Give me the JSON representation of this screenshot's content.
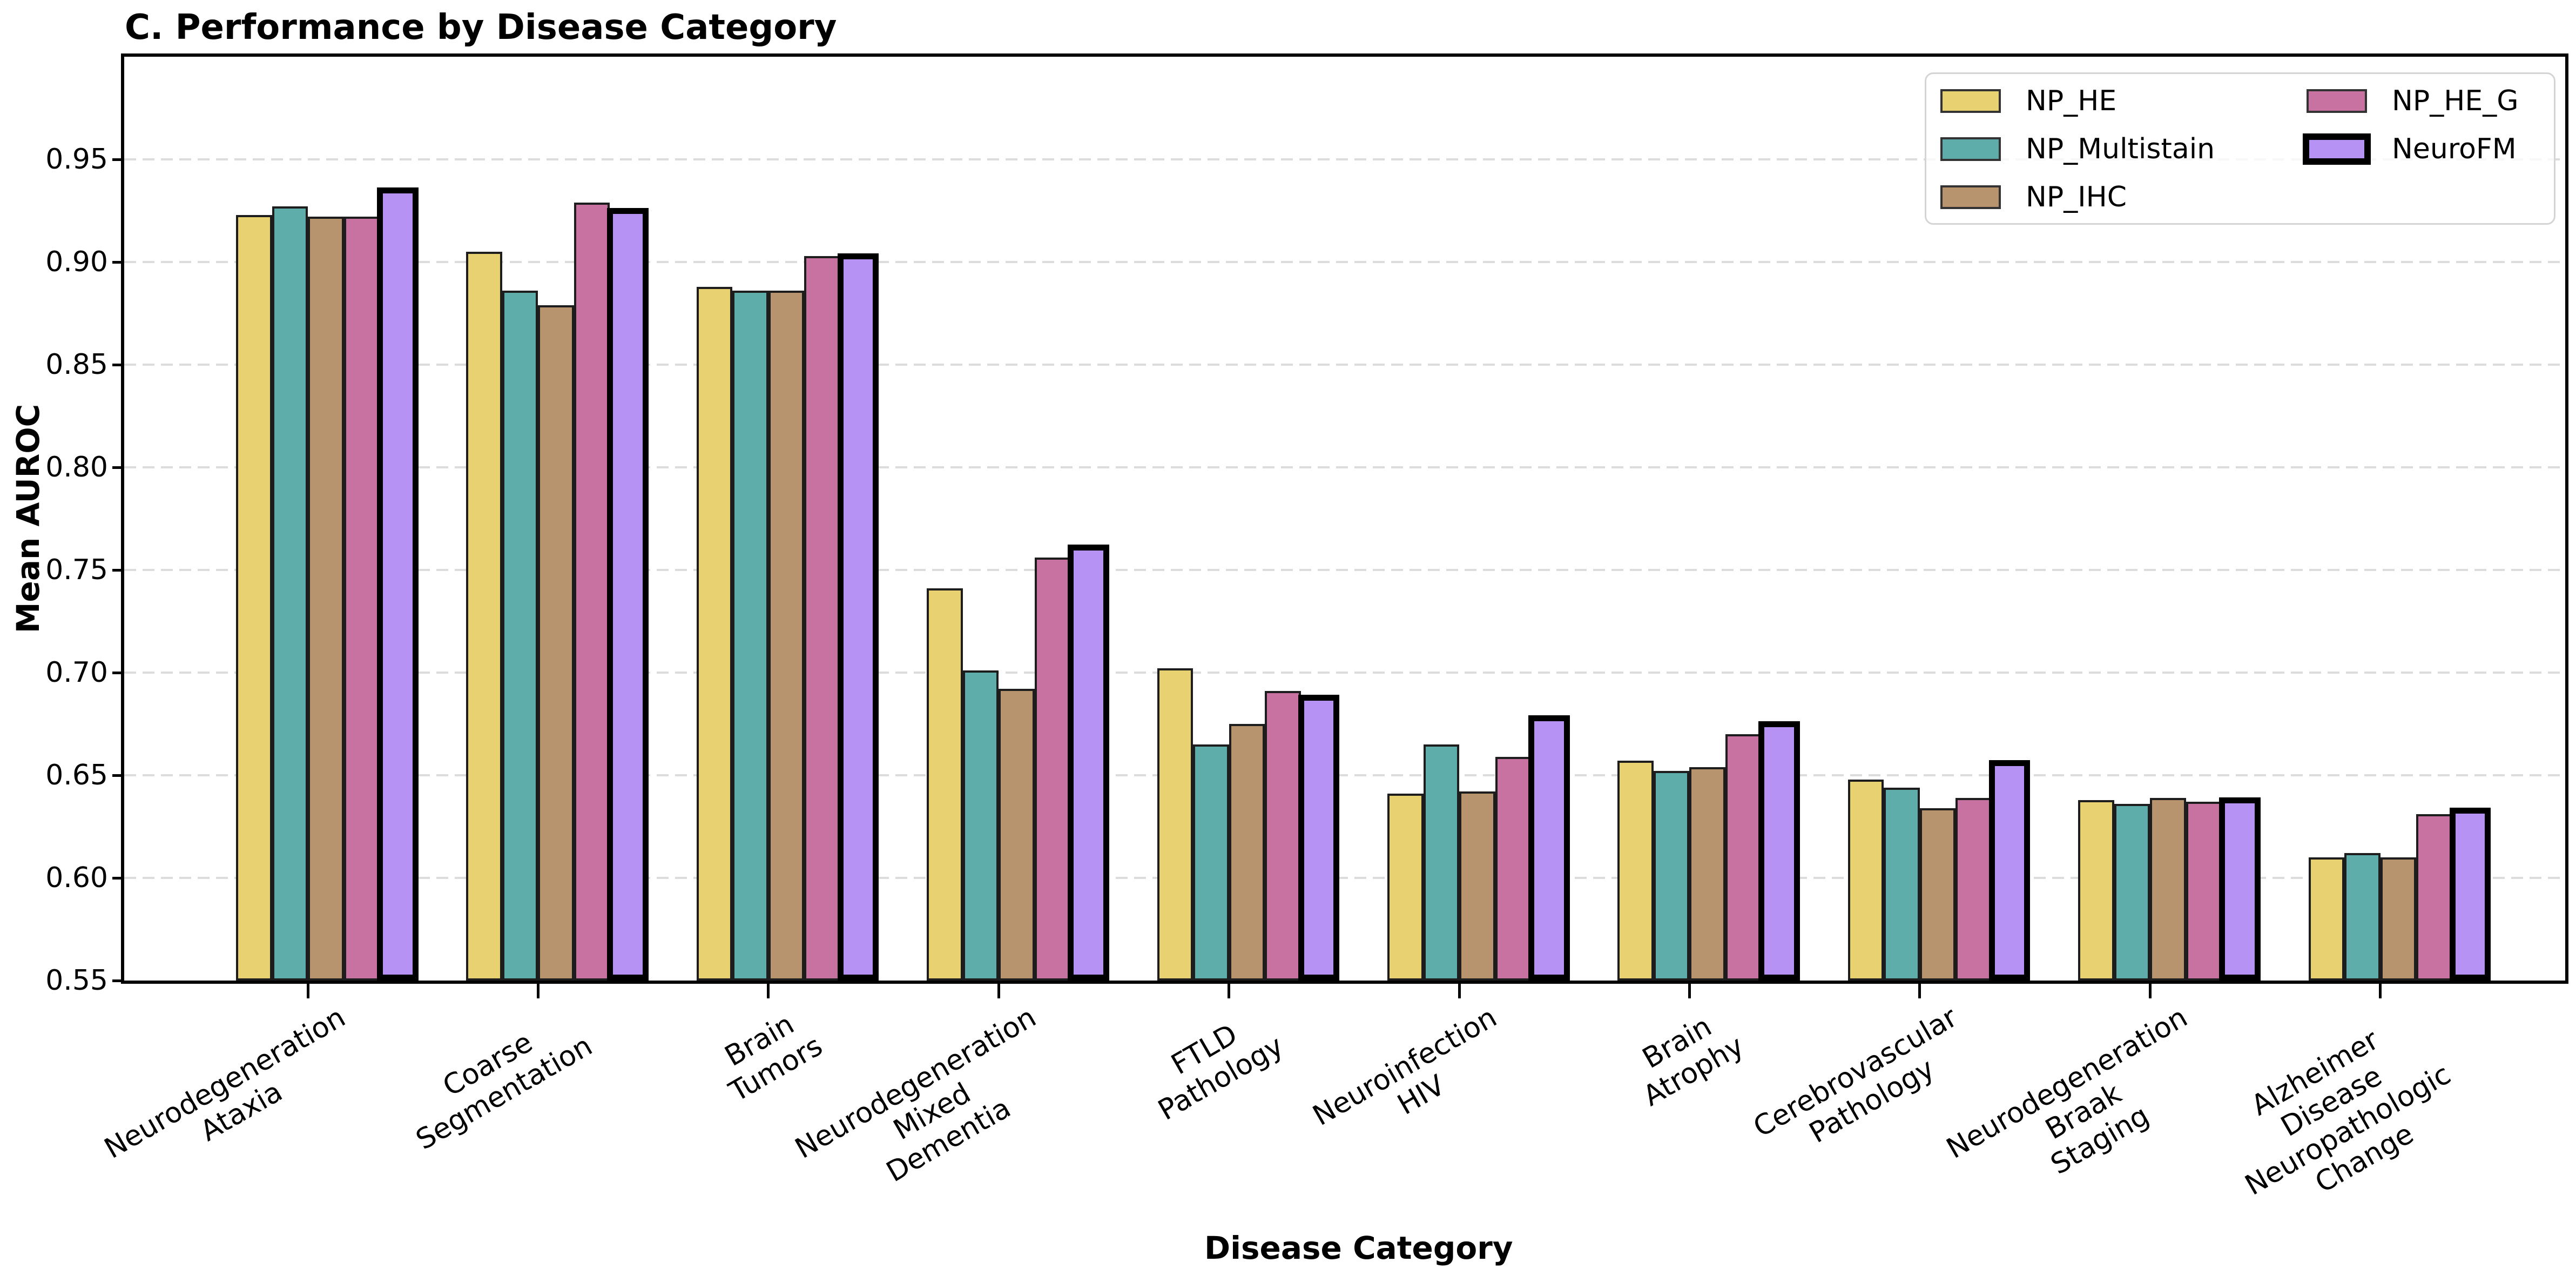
{
  "chart_data": {
    "type": "bar",
    "title": "C. Performance by Disease Category",
    "xlabel": "Disease Category",
    "ylabel": "Mean AUROC",
    "ylim": [
      0.55,
      1.0
    ],
    "yticks": [
      0.55,
      0.6,
      0.65,
      0.7,
      0.75,
      0.8,
      0.85,
      0.9,
      0.95
    ],
    "grid": {
      "show": true,
      "style": "dashed",
      "color": "#dcdcdc",
      "orientation": "horizontal"
    },
    "legend": {
      "position": "upper-right",
      "columns": 2,
      "frame_color": "#d4d4d4"
    },
    "bar_edge_color": "#1d1d1d",
    "highlight_edge_color": "#000000",
    "categories": [
      "Neurodegeneration\nAtaxia",
      "Coarse\nSegmentation",
      "Brain\nTumors",
      "Neurodegeneration\nMixed\nDementia",
      "FTLD\nPathology",
      "Neuroinfection\nHIV",
      "Brain\nAtrophy",
      "Cerebrovascular\nPathology",
      "Neurodegeneration\nBraak\nStaging",
      "Alzheimer\nDisease\nNeuropathologic\nChange"
    ],
    "series": [
      {
        "name": "NP_HE",
        "color": "#e8d170",
        "highlight": false,
        "values": [
          0.923,
          0.905,
          0.888,
          0.741,
          0.702,
          0.641,
          0.657,
          0.648,
          0.638,
          0.61
        ]
      },
      {
        "name": "NP_Multistain",
        "color": "#5fadaa",
        "highlight": false,
        "values": [
          0.927,
          0.886,
          0.886,
          0.701,
          0.665,
          0.665,
          0.652,
          0.644,
          0.636,
          0.612
        ]
      },
      {
        "name": "NP_IHC",
        "color": "#b7946d",
        "highlight": false,
        "values": [
          0.922,
          0.879,
          0.886,
          0.692,
          0.675,
          0.642,
          0.654,
          0.634,
          0.639,
          0.61
        ]
      },
      {
        "name": "NP_HE_G",
        "color": "#c772a0",
        "highlight": false,
        "values": [
          0.922,
          0.929,
          0.903,
          0.756,
          0.691,
          0.659,
          0.67,
          0.639,
          0.637,
          0.631
        ]
      },
      {
        "name": "NeuroFM",
        "color": "#b592f3",
        "highlight": true,
        "values": [
          0.935,
          0.925,
          0.903,
          0.761,
          0.688,
          0.678,
          0.675,
          0.656,
          0.638,
          0.633
        ]
      }
    ]
  }
}
